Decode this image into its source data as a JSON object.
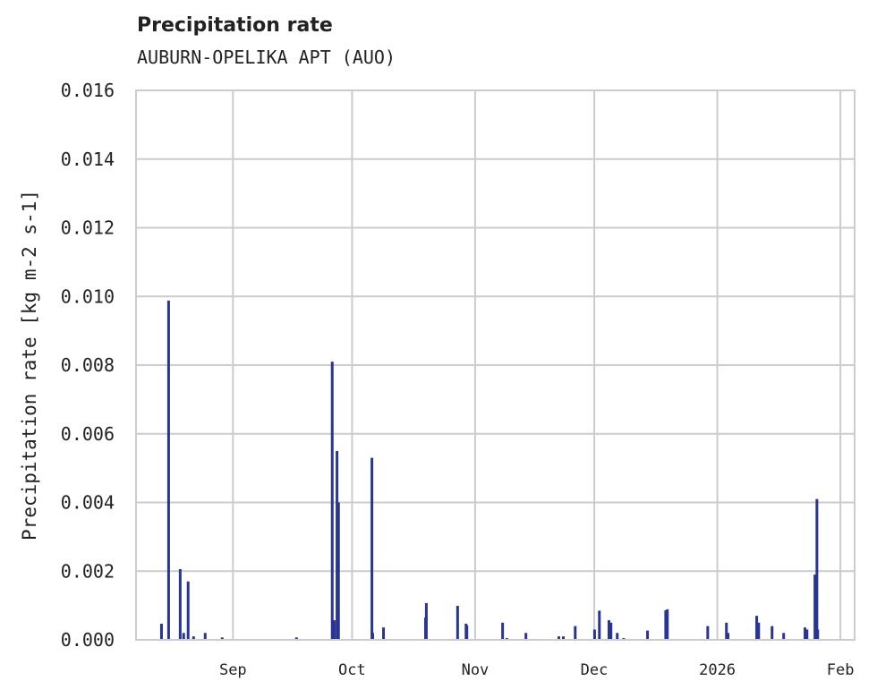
{
  "chart_data": {
    "type": "bar",
    "title": "Precipitation rate",
    "subtitle": "AUBURN-OPELIKA APT (AUO)",
    "xlabel": "",
    "ylabel": "Precipitation rate [kg m-2 s-1]",
    "ylim": [
      0,
      0.016
    ],
    "xlim": [
      "2025-08-07T14:00",
      "2026-02-04T14:00"
    ],
    "yticks": [
      "0.000",
      "0.002",
      "0.004",
      "0.006",
      "0.008",
      "0.010",
      "0.012",
      "0.014",
      "0.016"
    ],
    "xticks": [
      {
        "label": "Sep",
        "date": "2025-09-01T00:00"
      },
      {
        "label": "Oct",
        "date": "2025-10-01T00:00"
      },
      {
        "label": "Nov",
        "date": "2025-11-01T00:00"
      },
      {
        "label": "Dec",
        "date": "2025-12-01T00:00"
      },
      {
        "label": "2026",
        "date": "2026-01-01T00:00"
      },
      {
        "label": "Feb",
        "date": "2026-02-01T00:00"
      }
    ],
    "grid": true,
    "color": "#283593",
    "points": [
      [
        "2025-08-14T00:00",
        0.00047
      ],
      [
        "2025-08-15T19:00",
        0.00988
      ],
      [
        "2025-08-18T17:00",
        0.00206
      ],
      [
        "2025-08-19T14:00",
        0.0002
      ],
      [
        "2025-08-20T17:00",
        0.0017
      ],
      [
        "2025-08-22T02:00",
        0.0001
      ],
      [
        "2025-08-25T00:00",
        0.0002
      ],
      [
        "2025-08-29T07:00",
        7e-05
      ],
      [
        "2025-09-17T00:00",
        7e-05
      ],
      [
        "2025-09-26T00:00",
        0.0081
      ],
      [
        "2025-09-26T12:00",
        0.00057
      ],
      [
        "2025-09-27T05:00",
        0.0055
      ],
      [
        "2025-09-27T14:00",
        0.004
      ],
      [
        "2025-10-06T00:00",
        0.0053
      ],
      [
        "2025-10-06T05:00",
        0.0002
      ],
      [
        "2025-10-08T22:00",
        0.00036
      ],
      [
        "2025-10-19T12:00",
        0.00065
      ],
      [
        "2025-10-19T17:00",
        0.00107
      ],
      [
        "2025-10-27T14:00",
        0.00099
      ],
      [
        "2025-10-29T17:00",
        0.00047
      ],
      [
        "2025-10-29T22:00",
        0.00042
      ],
      [
        "2025-11-07T22:00",
        0.0005
      ],
      [
        "2025-11-09T00:00",
        5e-05
      ],
      [
        "2025-11-13T19:00",
        0.0002
      ],
      [
        "2025-11-22T02:00",
        0.0001
      ],
      [
        "2025-11-23T05:00",
        0.0001
      ],
      [
        "2025-11-26T05:00",
        0.0004
      ],
      [
        "2025-12-01T02:00",
        0.0003
      ],
      [
        "2025-12-02T07:00",
        0.00085
      ],
      [
        "2025-12-04T17:00",
        0.00057
      ],
      [
        "2025-12-05T05:00",
        0.0005
      ],
      [
        "2025-12-06T19:00",
        0.0002
      ],
      [
        "2025-12-08T10:00",
        5e-05
      ],
      [
        "2025-12-14T10:00",
        0.00027
      ],
      [
        "2025-12-19T00:00",
        0.00086
      ],
      [
        "2025-12-19T10:00",
        0.00089
      ],
      [
        "2025-12-29T14:00",
        0.0004
      ],
      [
        "2026-01-03T07:00",
        0.0005
      ],
      [
        "2026-01-03T17:00",
        0.0002
      ],
      [
        "2026-01-10T22:00",
        0.0007
      ],
      [
        "2026-01-11T10:00",
        0.0005
      ],
      [
        "2026-01-14T19:00",
        0.0004
      ],
      [
        "2026-01-17T17:00",
        0.0002
      ],
      [
        "2026-01-23T02:00",
        0.00036
      ],
      [
        "2026-01-23T14:00",
        0.0003
      ],
      [
        "2026-01-25T14:00",
        0.0019
      ],
      [
        "2026-01-26T02:00",
        0.0041
      ],
      [
        "2026-01-26T07:00",
        0.0003
      ]
    ]
  }
}
